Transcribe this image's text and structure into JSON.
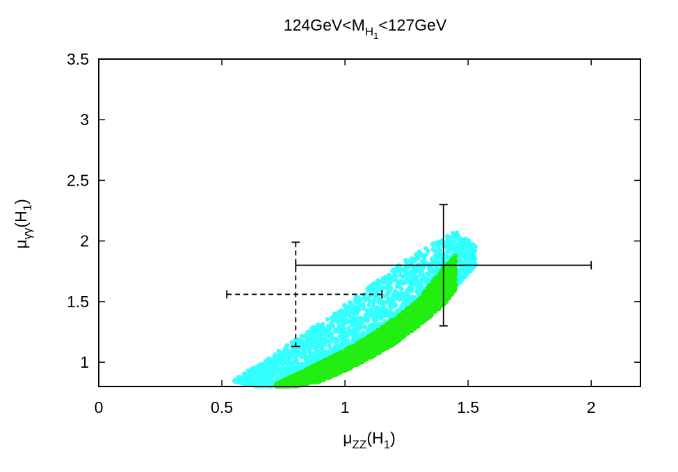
{
  "chart_data": {
    "type": "scatter",
    "title": {
      "prefix": "124GeV<M",
      "sub": "H",
      "subsub": "1",
      "suffix": "<127GeV"
    },
    "xlabel": {
      "base": "μ",
      "sub": "ZZ",
      "suffix": "(H",
      "suffix_sub": "1",
      "close": ")"
    },
    "ylabel": {
      "base": "μ",
      "sub": "γγ",
      "suffix": "(H",
      "suffix_sub": "1",
      "close": ")"
    },
    "xlim": [
      0,
      2.2
    ],
    "ylim": [
      0.8,
      3.5
    ],
    "xticks": [
      0,
      0.5,
      1,
      1.5,
      2
    ],
    "xtick_labels": [
      "0",
      "0.5",
      "1",
      "1.5",
      "2"
    ],
    "yticks": [
      1,
      1.5,
      2,
      2.5,
      3,
      3.5
    ],
    "ytick_labels": [
      "1",
      "1.5",
      "2",
      "2.5",
      "3",
      "3.5"
    ],
    "grid": false,
    "series": [
      {
        "color": "#33ffff",
        "band": {
          "x": [
            0.55,
            0.65,
            0.75,
            0.85,
            0.95,
            1.05,
            1.15,
            1.25,
            1.35,
            1.45,
            1.53
          ],
          "y_low": [
            0.84,
            0.8,
            0.8,
            0.86,
            0.95,
            1.05,
            1.17,
            1.3,
            1.45,
            1.62,
            1.8
          ],
          "y_high": [
            0.86,
            0.98,
            1.12,
            1.26,
            1.4,
            1.55,
            1.7,
            1.85,
            1.97,
            2.08,
            1.97
          ]
        }
      },
      {
        "color": "#22ee11",
        "band": {
          "x": [
            0.72,
            0.8,
            0.9,
            1.0,
            1.1,
            1.2,
            1.3,
            1.4,
            1.45
          ],
          "y_low": [
            0.8,
            0.8,
            0.84,
            0.93,
            1.03,
            1.15,
            1.3,
            1.47,
            1.6
          ],
          "y_high": [
            0.82,
            0.9,
            1.0,
            1.1,
            1.22,
            1.36,
            1.52,
            1.78,
            1.88
          ]
        }
      }
    ],
    "error_bars": [
      {
        "x": 1.4,
        "y": 1.8,
        "xerr": [
          0.6,
          0.6
        ],
        "yerr": [
          0.5,
          0.5
        ],
        "style": "solid"
      },
      {
        "x": 0.8,
        "y": 1.56,
        "xerr": [
          0.28,
          0.35
        ],
        "yerr": [
          0.43,
          0.43
        ],
        "style": "dashed"
      }
    ]
  }
}
